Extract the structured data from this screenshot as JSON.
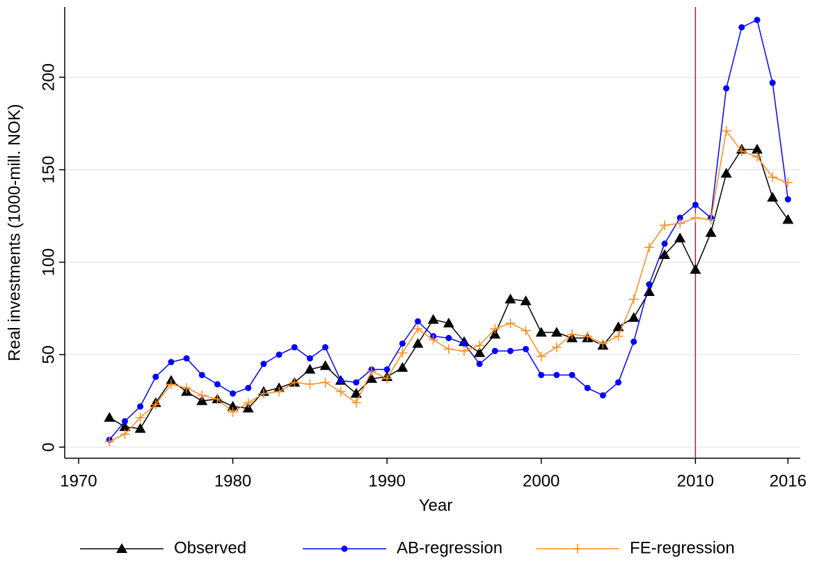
{
  "chart_data": {
    "type": "line",
    "x_label": "Year",
    "y_label": "Real investments (1000-mill. NOK)",
    "x": [
      1972,
      1973,
      1974,
      1975,
      1976,
      1977,
      1978,
      1979,
      1980,
      1981,
      1982,
      1983,
      1984,
      1985,
      1986,
      1987,
      1988,
      1989,
      1990,
      1991,
      1992,
      1993,
      1994,
      1995,
      1996,
      1997,
      1998,
      1999,
      2000,
      2001,
      2002,
      2003,
      2004,
      2005,
      2006,
      2007,
      2008,
      2009,
      2010,
      2011,
      2012,
      2013,
      2014,
      2015,
      2016
    ],
    "series": [
      {
        "name": "Observed",
        "color": "#000000",
        "marker": "triangle",
        "values": [
          16,
          11,
          10,
          24,
          36,
          30,
          25,
          26,
          22,
          21,
          30,
          32,
          35,
          42,
          44,
          36,
          29,
          37,
          38,
          43,
          56,
          69,
          67,
          57,
          51,
          61,
          80,
          79,
          62,
          62,
          59,
          59,
          55,
          65,
          70,
          84,
          104,
          113,
          96,
          116,
          148,
          161,
          161,
          135,
          123
        ]
      },
      {
        "name": "AB-regression",
        "color": "#0000ff",
        "marker": "circle",
        "values": [
          4,
          14,
          22,
          38,
          46,
          48,
          39,
          34,
          29,
          32,
          45,
          50,
          54,
          48,
          54,
          36,
          35,
          42,
          42,
          56,
          68,
          60,
          59,
          56,
          45,
          52,
          52,
          53,
          39,
          39,
          39,
          32,
          28,
          35,
          57,
          88,
          110,
          124,
          131,
          124,
          194,
          227,
          231,
          197,
          134
        ]
      },
      {
        "name": "FE-regression",
        "color": "#ff8c1a",
        "marker": "plus",
        "values": [
          3,
          7,
          16,
          23,
          34,
          32,
          28,
          26,
          19,
          24,
          29,
          30,
          35,
          34,
          35,
          30,
          24,
          41,
          37,
          51,
          64,
          58,
          53,
          52,
          55,
          64,
          67,
          63,
          49,
          54,
          61,
          60,
          56,
          60,
          80,
          108,
          120,
          121,
          124,
          123,
          171,
          160,
          157,
          146,
          143
        ]
      }
    ],
    "xlim": [
      1969.1,
      2016.8
    ],
    "ylim": [
      -6,
      238
    ],
    "xticks": [
      1970,
      1980,
      1990,
      2000,
      2010,
      2016
    ],
    "yticks": [
      0,
      50,
      100,
      150,
      200
    ],
    "grid": true,
    "vline": {
      "x": 2010,
      "color": "#c0144c"
    },
    "legend": "bottom"
  }
}
